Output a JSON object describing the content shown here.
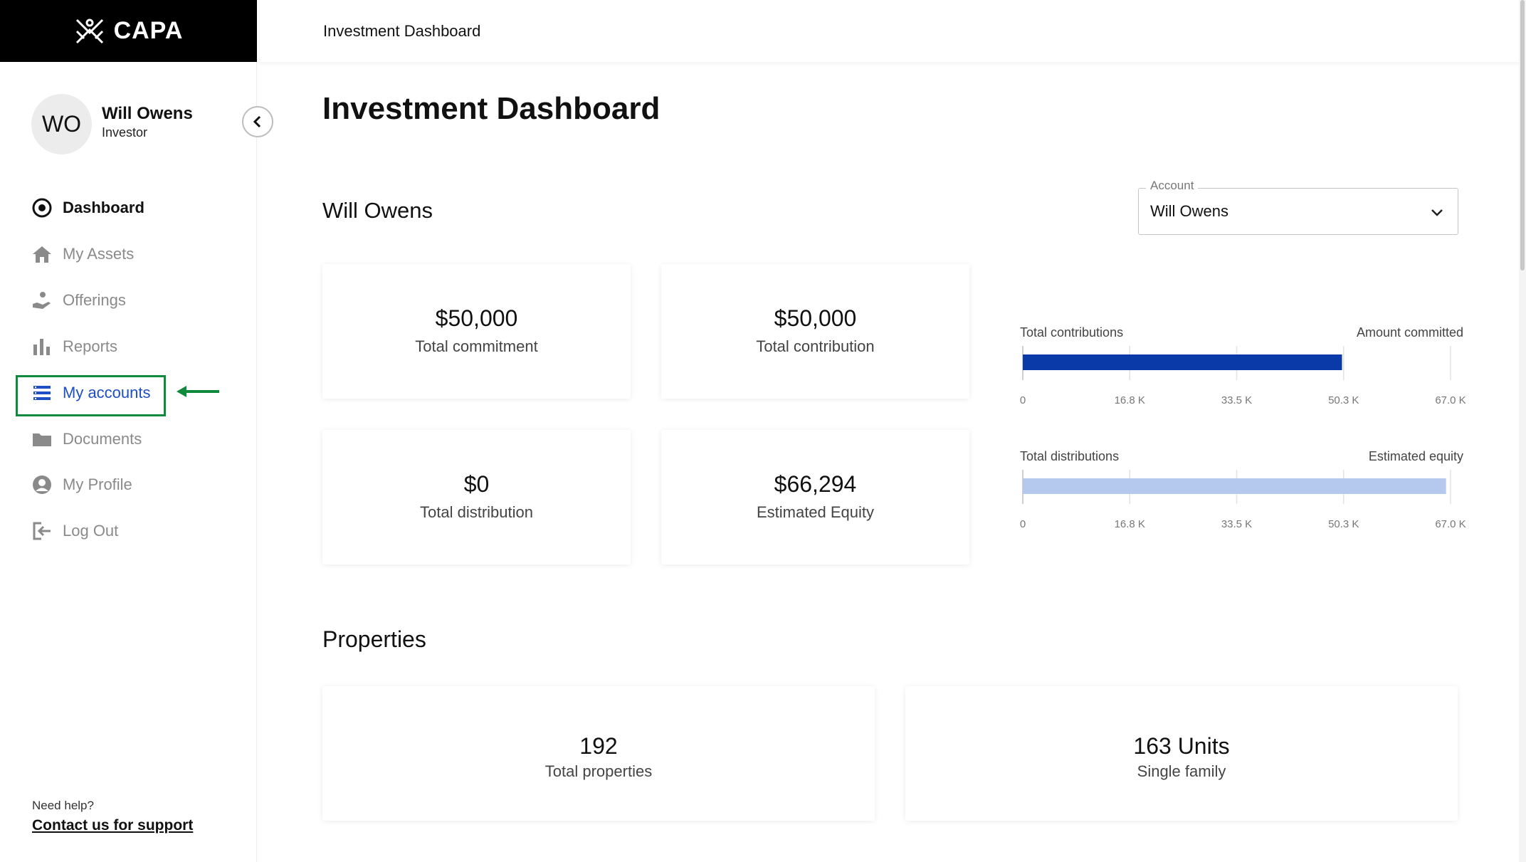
{
  "brand": {
    "name": "CAPA"
  },
  "user": {
    "initials": "WO",
    "name": "Will Owens",
    "role": "Investor"
  },
  "nav": {
    "items": [
      {
        "label": "Dashboard",
        "icon": "target-icon"
      },
      {
        "label": "My Assets",
        "icon": "home-icon"
      },
      {
        "label": "Offerings",
        "icon": "hand-coin-icon"
      },
      {
        "label": "Reports",
        "icon": "bar-chart-icon"
      },
      {
        "label": "My accounts",
        "icon": "list-icon"
      },
      {
        "label": "Documents",
        "icon": "folder-icon"
      },
      {
        "label": "My Profile",
        "icon": "user-circle-icon"
      },
      {
        "label": "Log Out",
        "icon": "logout-icon"
      }
    ]
  },
  "help": {
    "label": "Need help?",
    "link": "Contact us for support"
  },
  "topbar": {
    "title": "Investment Dashboard"
  },
  "main": {
    "title": "Investment Dashboard",
    "investor_name": "Will Owens",
    "account": {
      "label": "Account",
      "value": "Will Owens"
    },
    "cards": [
      {
        "value": "$50,000",
        "label": "Total commitment"
      },
      {
        "value": "$50,000",
        "label": "Total contribution"
      },
      {
        "value": "$0",
        "label": "Total distribution"
      },
      {
        "value": "$66,294",
        "label": "Estimated Equity"
      }
    ],
    "properties_title": "Properties",
    "property_cards": [
      {
        "value": "192",
        "label": "Total properties"
      },
      {
        "value": "163 Units",
        "label": "Single family"
      }
    ]
  },
  "chart_data": [
    {
      "type": "bar",
      "orientation": "horizontal",
      "left_label": "Total contributions",
      "right_label": "Amount committed",
      "value": 50000,
      "xlim": [
        0,
        67000
      ],
      "ticks": [
        "0",
        "16.8 K",
        "33.5 K",
        "50.3 K",
        "67.0 K"
      ],
      "color": "#0a3aa8"
    },
    {
      "type": "bar",
      "orientation": "horizontal",
      "left_label": "Total distributions",
      "right_label": "Estimated equity",
      "value": 66294,
      "xlim": [
        0,
        67000
      ],
      "ticks": [
        "0",
        "16.8 K",
        "33.5 K",
        "50.3 K",
        "67.0 K"
      ],
      "color": "#b5c8ee"
    }
  ],
  "colors": {
    "highlight_border": "#0f8a3c",
    "link_blue": "#1e4fc4",
    "logo_bg": "#000000"
  }
}
